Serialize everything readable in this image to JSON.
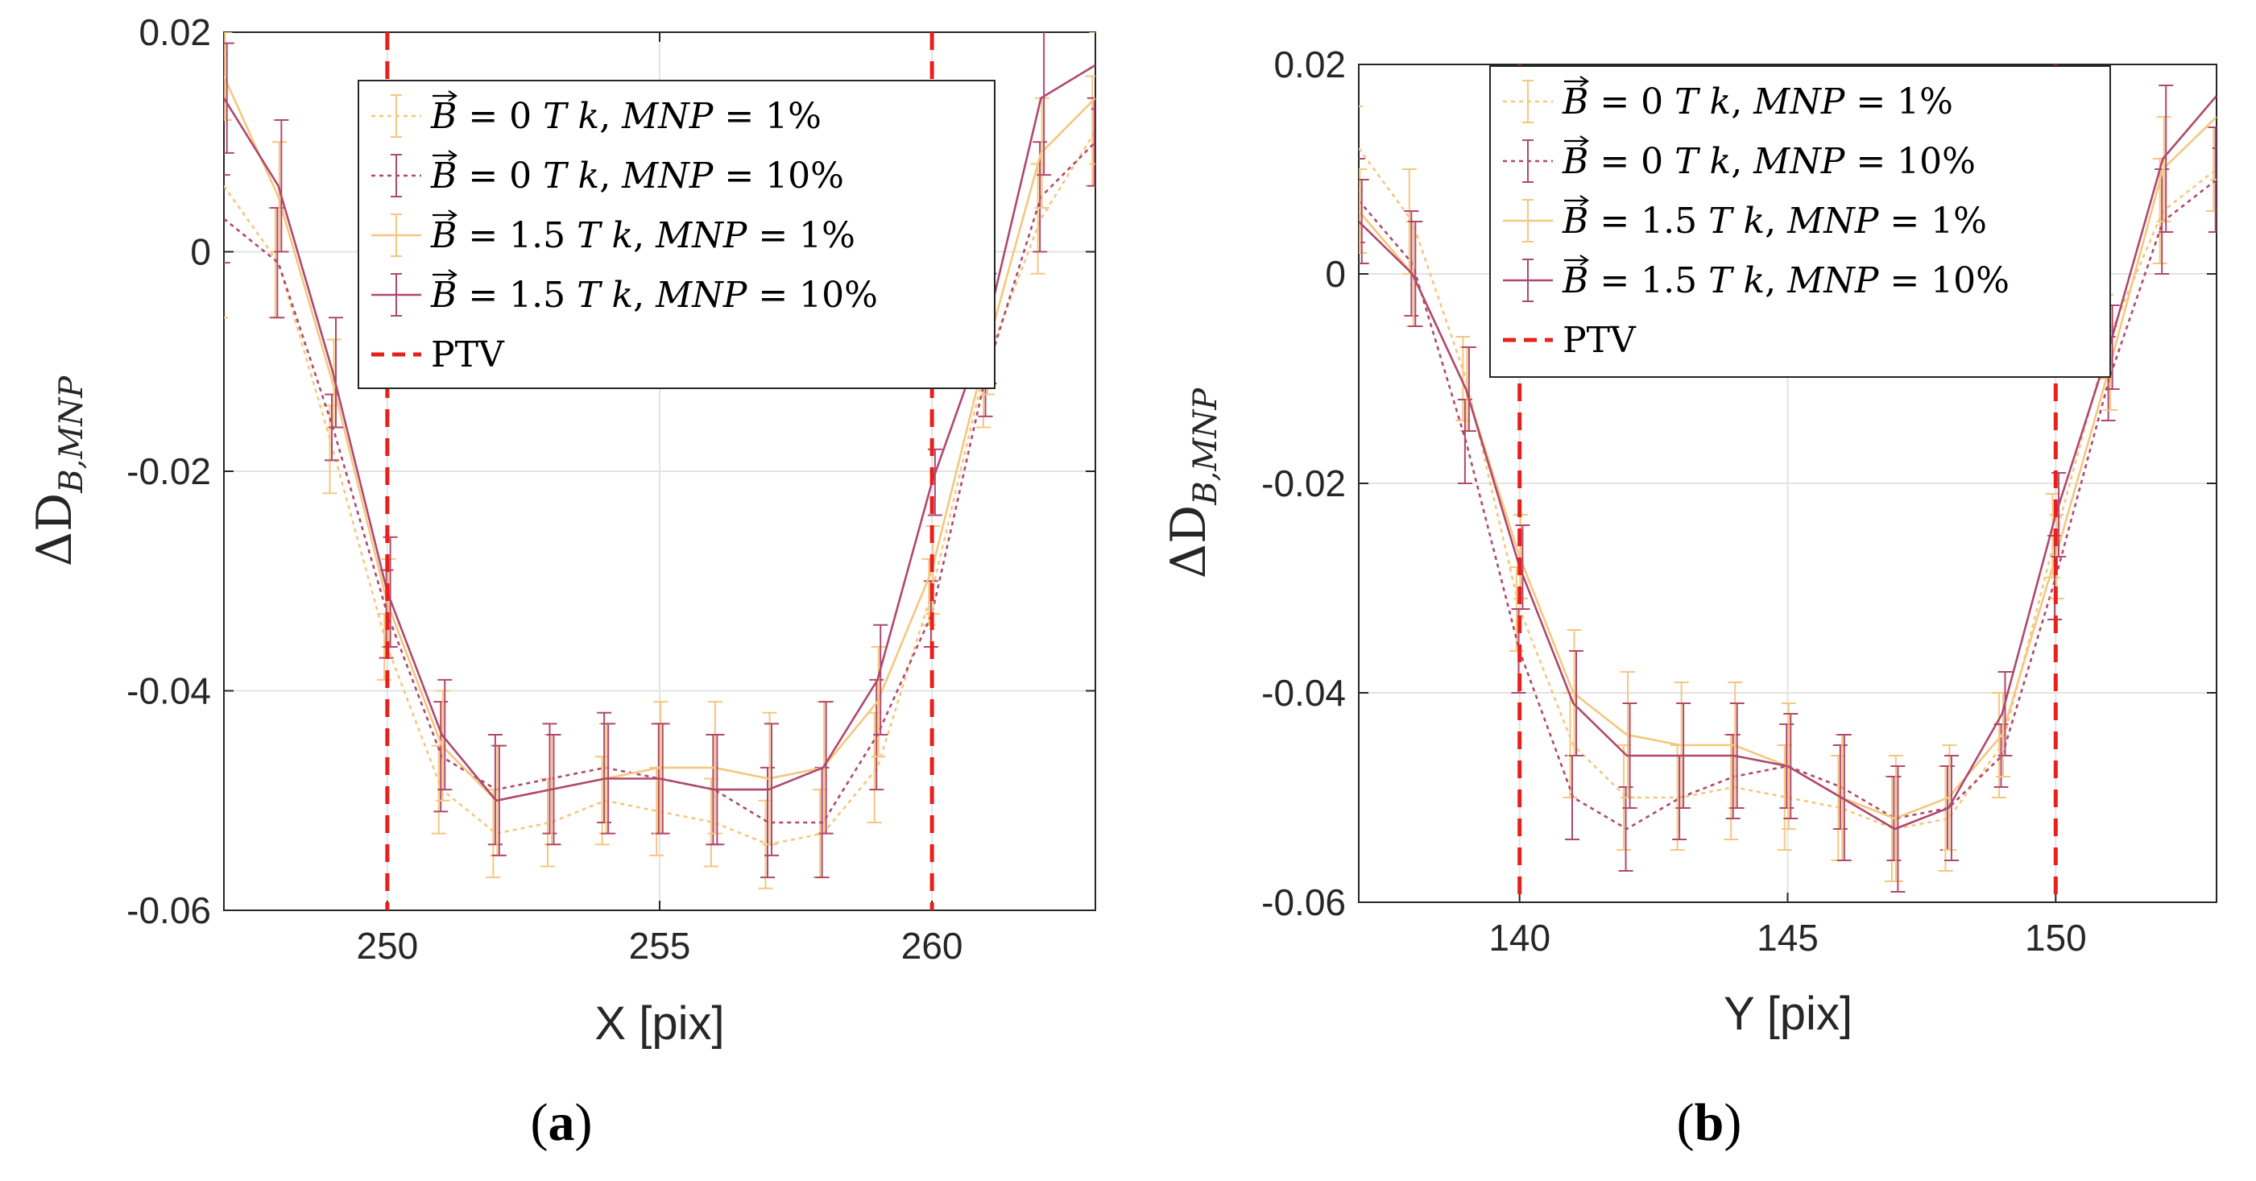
{
  "chart_data": [
    {
      "type": "line",
      "panel_label": "(a)",
      "xlabel": "X [pix]",
      "ylabel": "ΔD_{B,MNP}",
      "xlim": [
        247,
        263
      ],
      "ylim": [
        -0.06,
        0.02
      ],
      "xticks": [
        250,
        255,
        260
      ],
      "yticks": [
        0.02,
        0,
        -0.02,
        -0.04,
        -0.06
      ],
      "grid": true,
      "legend_position": "top-right",
      "reference_lines": [
        {
          "x": 250,
          "label": "PTV"
        },
        {
          "x": 260,
          "label": "PTV"
        }
      ],
      "x": [
        247,
        248,
        249,
        250,
        251,
        252,
        253,
        254,
        255,
        256,
        257,
        258,
        259,
        260,
        261,
        262,
        263
      ],
      "series": [
        {
          "name": "B = 0 T k, MNP = 1%",
          "color": "#F5C77E",
          "dash": "dotted",
          "values": [
            0.006,
            -0.001,
            -0.018,
            -0.036,
            -0.049,
            -0.053,
            -0.052,
            -0.05,
            -0.051,
            -0.052,
            -0.054,
            -0.053,
            -0.047,
            -0.031,
            -0.01,
            0.003,
            0.011
          ],
          "errors": [
            0.012,
            0.005,
            0.004,
            0.003,
            0.004,
            0.004,
            0.004,
            0.004,
            0.004,
            0.004,
            0.004,
            0.004,
            0.005,
            0.003,
            0.006,
            0.005,
            0.005
          ]
        },
        {
          "name": "B = 0 T k, MNP = 10%",
          "color": "#B0486E",
          "dash": "dotted",
          "values": [
            0.003,
            -0.001,
            -0.016,
            -0.033,
            -0.046,
            -0.049,
            -0.048,
            -0.047,
            -0.048,
            -0.049,
            -0.052,
            -0.052,
            -0.044,
            -0.033,
            -0.011,
            0.005,
            0.01
          ],
          "errors": [
            0.004,
            0.005,
            0.003,
            0.004,
            0.005,
            0.005,
            0.005,
            0.005,
            0.005,
            0.005,
            0.005,
            0.005,
            0.005,
            0.003,
            0.004,
            0.005,
            0.004
          ]
        },
        {
          "name": "B = 1.5 T k, MNP = 1%",
          "color": "#F5C77E",
          "dash": "solid",
          "values": [
            0.016,
            0.005,
            -0.012,
            -0.032,
            -0.045,
            -0.05,
            -0.049,
            -0.048,
            -0.047,
            -0.047,
            -0.048,
            -0.047,
            -0.041,
            -0.029,
            -0.009,
            0.009,
            0.014
          ],
          "errors": [
            0.004,
            0.005,
            0.004,
            0.004,
            0.005,
            0.005,
            0.005,
            0.005,
            0.006,
            0.006,
            0.006,
            0.006,
            0.005,
            0.004,
            0.004,
            0.005,
            0.006
          ]
        },
        {
          "name": "B = 1.5 T k, MNP = 10%",
          "color": "#B0486E",
          "dash": "solid",
          "values": [
            0.014,
            0.006,
            -0.011,
            -0.031,
            -0.044,
            -0.05,
            -0.049,
            -0.048,
            -0.048,
            -0.049,
            -0.049,
            -0.047,
            -0.039,
            -0.021,
            -0.007,
            0.014,
            0.017
          ],
          "errors": [
            0.005,
            0.006,
            0.005,
            0.005,
            0.005,
            0.005,
            0.005,
            0.005,
            0.005,
            0.005,
            0.006,
            0.006,
            0.005,
            0.003,
            0.005,
            0.007,
            0.004
          ]
        }
      ]
    },
    {
      "type": "line",
      "panel_label": "(b)",
      "xlabel": "Y [pix]",
      "ylabel": "ΔD_{B,MNP}",
      "xlim": [
        137,
        153
      ],
      "ylim": [
        -0.06,
        0.02
      ],
      "xticks": [
        140,
        145,
        150
      ],
      "yticks": [
        0.02,
        0,
        -0.02,
        -0.04,
        -0.06
      ],
      "grid": true,
      "legend_position": "top-right",
      "reference_lines": [
        {
          "x": 140,
          "label": "PTV"
        },
        {
          "x": 150,
          "label": "PTV"
        }
      ],
      "x": [
        137,
        138,
        139,
        140,
        141,
        142,
        143,
        144,
        145,
        146,
        147,
        148,
        149,
        150,
        151,
        152,
        153
      ],
      "series": [
        {
          "name": "B = 0 T k, MNP = 1%",
          "color": "#F5C77E",
          "dash": "dotted",
          "values": [
            0.012,
            0.005,
            -0.01,
            -0.032,
            -0.045,
            -0.05,
            -0.05,
            -0.049,
            -0.05,
            -0.051,
            -0.053,
            -0.052,
            -0.045,
            -0.025,
            -0.006,
            0.006,
            0.01
          ],
          "errors": [
            0.004,
            0.005,
            0.004,
            0.004,
            0.005,
            0.005,
            0.005,
            0.005,
            0.005,
            0.005,
            0.005,
            0.005,
            0.005,
            0.004,
            0.004,
            0.005,
            0.004
          ]
        },
        {
          "name": "B = 0 T k, MNP = 10%",
          "color": "#B0486E",
          "dash": "dotted",
          "values": [
            0.007,
            0.001,
            -0.016,
            -0.036,
            -0.05,
            -0.053,
            -0.05,
            -0.048,
            -0.047,
            -0.049,
            -0.052,
            -0.051,
            -0.046,
            -0.029,
            -0.01,
            0.005,
            0.009
          ],
          "errors": [
            0.004,
            0.005,
            0.004,
            0.004,
            0.004,
            0.004,
            0.004,
            0.004,
            0.004,
            0.004,
            0.004,
            0.004,
            0.003,
            0.004,
            0.004,
            0.005,
            0.005
          ]
        },
        {
          "name": "B = 1.5 T k, MNP = 1%",
          "color": "#F5C77E",
          "dash": "solid",
          "values": [
            0.006,
            0.0,
            -0.011,
            -0.027,
            -0.04,
            -0.044,
            -0.045,
            -0.045,
            -0.047,
            -0.05,
            -0.052,
            -0.05,
            -0.044,
            -0.027,
            -0.009,
            0.01,
            0.015
          ],
          "errors": [
            0.004,
            0.005,
            0.004,
            0.004,
            0.006,
            0.006,
            0.006,
            0.006,
            0.006,
            0.006,
            0.006,
            0.005,
            0.004,
            0.004,
            0.004,
            0.005,
            0.006
          ]
        },
        {
          "name": "B = 1.5 T k, MNP = 10%",
          "color": "#B0486E",
          "dash": "solid",
          "values": [
            0.005,
            0.0,
            -0.011,
            -0.028,
            -0.041,
            -0.046,
            -0.046,
            -0.046,
            -0.047,
            -0.05,
            -0.053,
            -0.051,
            -0.042,
            -0.023,
            -0.007,
            0.011,
            0.017
          ],
          "errors": [
            0.004,
            0.005,
            0.004,
            0.004,
            0.005,
            0.005,
            0.005,
            0.005,
            0.005,
            0.006,
            0.006,
            0.005,
            0.004,
            0.004,
            0.004,
            0.007,
            0.005
          ]
        }
      ]
    }
  ]
}
